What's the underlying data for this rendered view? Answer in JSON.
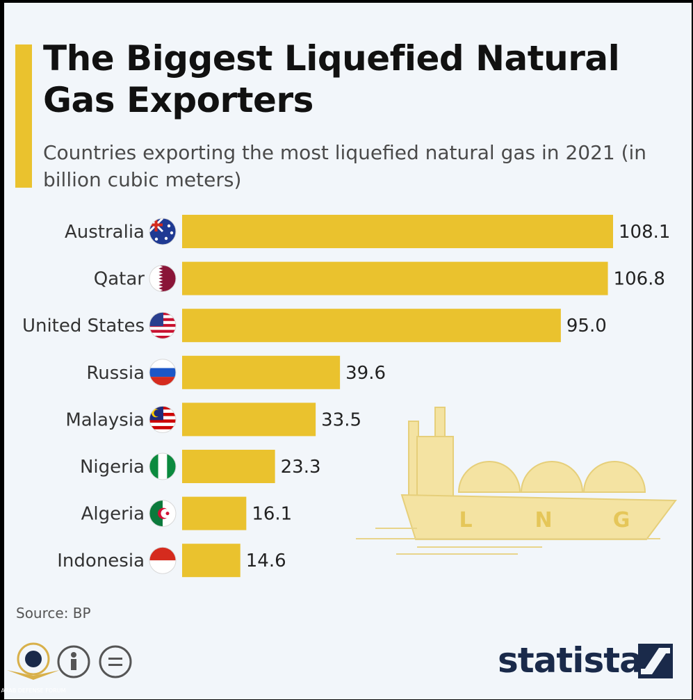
{
  "title": "The Biggest Liquefied Natural Gas Exporters",
  "subtitle": "Countries exporting the most liquefied natural gas in 2021 (in billion cubic meters)",
  "source": "Source: BP",
  "brand": "statista",
  "colors": {
    "bar": "#eac22e",
    "accent": "#eac22e",
    "illustration": "#f3e2a0",
    "brand": "#1a2a4a"
  },
  "illustration": {
    "letters": [
      "L",
      "N",
      "G"
    ]
  },
  "watermark": {
    "line1": "ARAB DEFENSE FORUM"
  },
  "chart_data": {
    "type": "bar",
    "orientation": "horizontal",
    "categories": [
      "Australia",
      "Qatar",
      "United States",
      "Russia",
      "Malaysia",
      "Nigeria",
      "Algeria",
      "Indonesia"
    ],
    "values": [
      108.1,
      106.8,
      95.0,
      39.6,
      33.5,
      23.3,
      16.1,
      14.6
    ],
    "value_labels": [
      "108.1",
      "106.8",
      "95.0",
      "39.6",
      "33.5",
      "23.3",
      "16.1",
      "14.6"
    ],
    "flags": [
      "australia-flag-icon",
      "qatar-flag-icon",
      "united-states-flag-icon",
      "russia-flag-icon",
      "malaysia-flag-icon",
      "nigeria-flag-icon",
      "algeria-flag-icon",
      "indonesia-flag-icon"
    ],
    "xlim": [
      0,
      108.1
    ],
    "grid": false,
    "legend": "none"
  }
}
